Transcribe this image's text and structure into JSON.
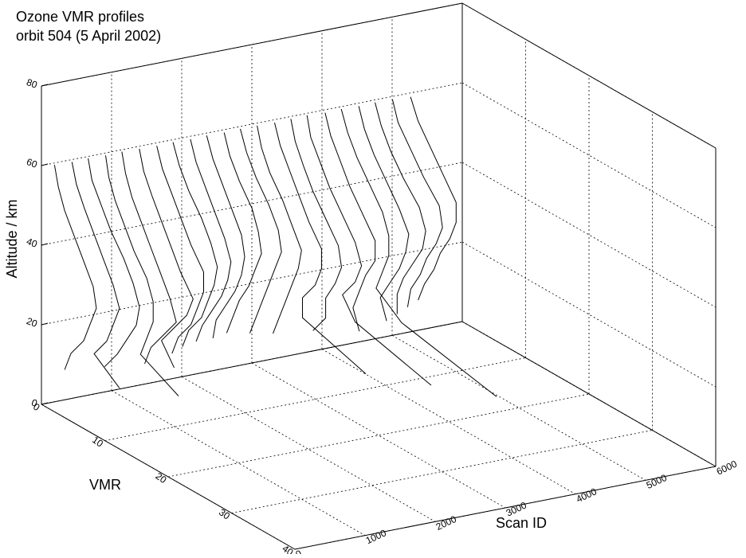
{
  "chart_data": {
    "type": "profiles3d",
    "title": "Ozone VMR profiles",
    "subtitle": "orbit 504 (5 April 2002)",
    "x_label": "VMR",
    "y_label": "Scan ID",
    "z_label": "Altitude / km",
    "xlim": [
      0,
      40
    ],
    "xticks": [
      0,
      10,
      20,
      30,
      40
    ],
    "ylim": [
      0,
      6000
    ],
    "yticks": [
      0,
      1000,
      2000,
      3000,
      4000,
      5000,
      6000
    ],
    "zlim": [
      0,
      80
    ],
    "zticks": [
      0,
      20,
      40,
      60,
      80
    ],
    "color": "#000000",
    "grid": true,
    "altitudes": [
      10,
      15,
      20,
      25,
      30,
      35,
      40,
      45,
      50,
      55,
      60
    ],
    "series": [
      {
        "scan": 150,
        "values": [
          2,
          3,
          5,
          6,
          7,
          6.5,
          5,
          3.5,
          2,
          1,
          0.4
        ]
      },
      {
        "scan": 390,
        "values": [
          8,
          4,
          6,
          7,
          8,
          7,
          5.5,
          4,
          2.5,
          1.2,
          0.5
        ]
      },
      {
        "scan": 630,
        "values": [
          3,
          5,
          6.5,
          8,
          8.5,
          7.5,
          6,
          4,
          2.5,
          1,
          0.4
        ]
      },
      {
        "scan": 870,
        "values": [
          12,
          6,
          7,
          8,
          8,
          7,
          5,
          3.5,
          2,
          1,
          0.5
        ]
      },
      {
        "scan": 1110,
        "values": [
          4,
          5,
          7,
          9,
          8,
          6.5,
          5,
          3.5,
          2,
          1,
          0.4
        ]
      },
      {
        "scan": 1350,
        "values": [
          6,
          4,
          6,
          8,
          9,
          7,
          5.5,
          4,
          2.5,
          1.2,
          0.5
        ]
      },
      {
        "scan": 1590,
        "values": [
          3,
          4,
          6,
          7,
          8,
          8,
          6,
          4.5,
          3,
          1.5,
          0.6
        ]
      },
      {
        "scan": 1830,
        "values": [
          2,
          3,
          5,
          6,
          7,
          7.5,
          6.5,
          5,
          3,
          1.5,
          0.5
        ]
      },
      {
        "scan": 2070,
        "values": [
          1.5,
          2.5,
          4,
          5.5,
          6.5,
          7,
          6,
          4.5,
          3,
          1.5,
          0.6
        ]
      },
      {
        "scan": 2310,
        "values": [
          1.5,
          2,
          3.5,
          5,
          6,
          6.5,
          6,
          4.5,
          3,
          1.5,
          0.5
        ]
      },
      {
        "scan": 2550,
        "values": [
          1,
          2,
          3,
          4.5,
          5.5,
          6.5,
          6,
          5,
          3,
          1.5,
          0.6
        ]
      },
      {
        "scan": 2790,
        "values": [
          2,
          3,
          4,
          5,
          6,
          7,
          6.5,
          5,
          3,
          1.5,
          0.5
        ]
      },
      {
        "scan": 3030,
        "values": [
          3,
          4,
          5,
          6,
          7,
          7.5,
          6,
          4.5,
          2.5,
          1.2,
          0.5
        ]
      },
      {
        "scan": 3270,
        "values": [
          15,
          5,
          5,
          7,
          8,
          8,
          6,
          4.5,
          3,
          1.5,
          0.6
        ]
      },
      {
        "scan": 3510,
        "values": [
          4,
          6,
          6,
          7.5,
          8.5,
          8,
          6,
          4,
          2.5,
          1.2,
          0.5
        ]
      },
      {
        "scan": 3750,
        "values": [
          20,
          8,
          6,
          8,
          9,
          8,
          6,
          4,
          2.5,
          1,
          0.4
        ]
      },
      {
        "scan": 3990,
        "values": [
          6,
          5,
          6,
          7,
          8.5,
          8.5,
          6.5,
          4.5,
          3,
          1.5,
          0.6
        ]
      },
      {
        "scan": 4230,
        "values": [
          25,
          10,
          6,
          7,
          8,
          8,
          7,
          5,
          3,
          1.5,
          0.5
        ]
      },
      {
        "scan": 4470,
        "values": [
          5,
          4,
          5.5,
          7,
          8,
          8.5,
          7,
          5,
          3,
          1.5,
          0.6
        ]
      },
      {
        "scan": 4710,
        "values": [
          4,
          4,
          5,
          6.5,
          8,
          8.5,
          7.5,
          5,
          3,
          1.5,
          0.5
        ]
      },
      {
        "scan": 4950,
        "values": [
          3,
          3.5,
          5,
          6,
          7.5,
          8.5,
          8,
          5.5,
          3.5,
          1.5,
          0.6
        ]
      },
      {
        "scan": 5190,
        "values": [
          2,
          3,
          4.5,
          5.5,
          7,
          8,
          8,
          6,
          4,
          2,
          0.8
        ]
      }
    ]
  }
}
